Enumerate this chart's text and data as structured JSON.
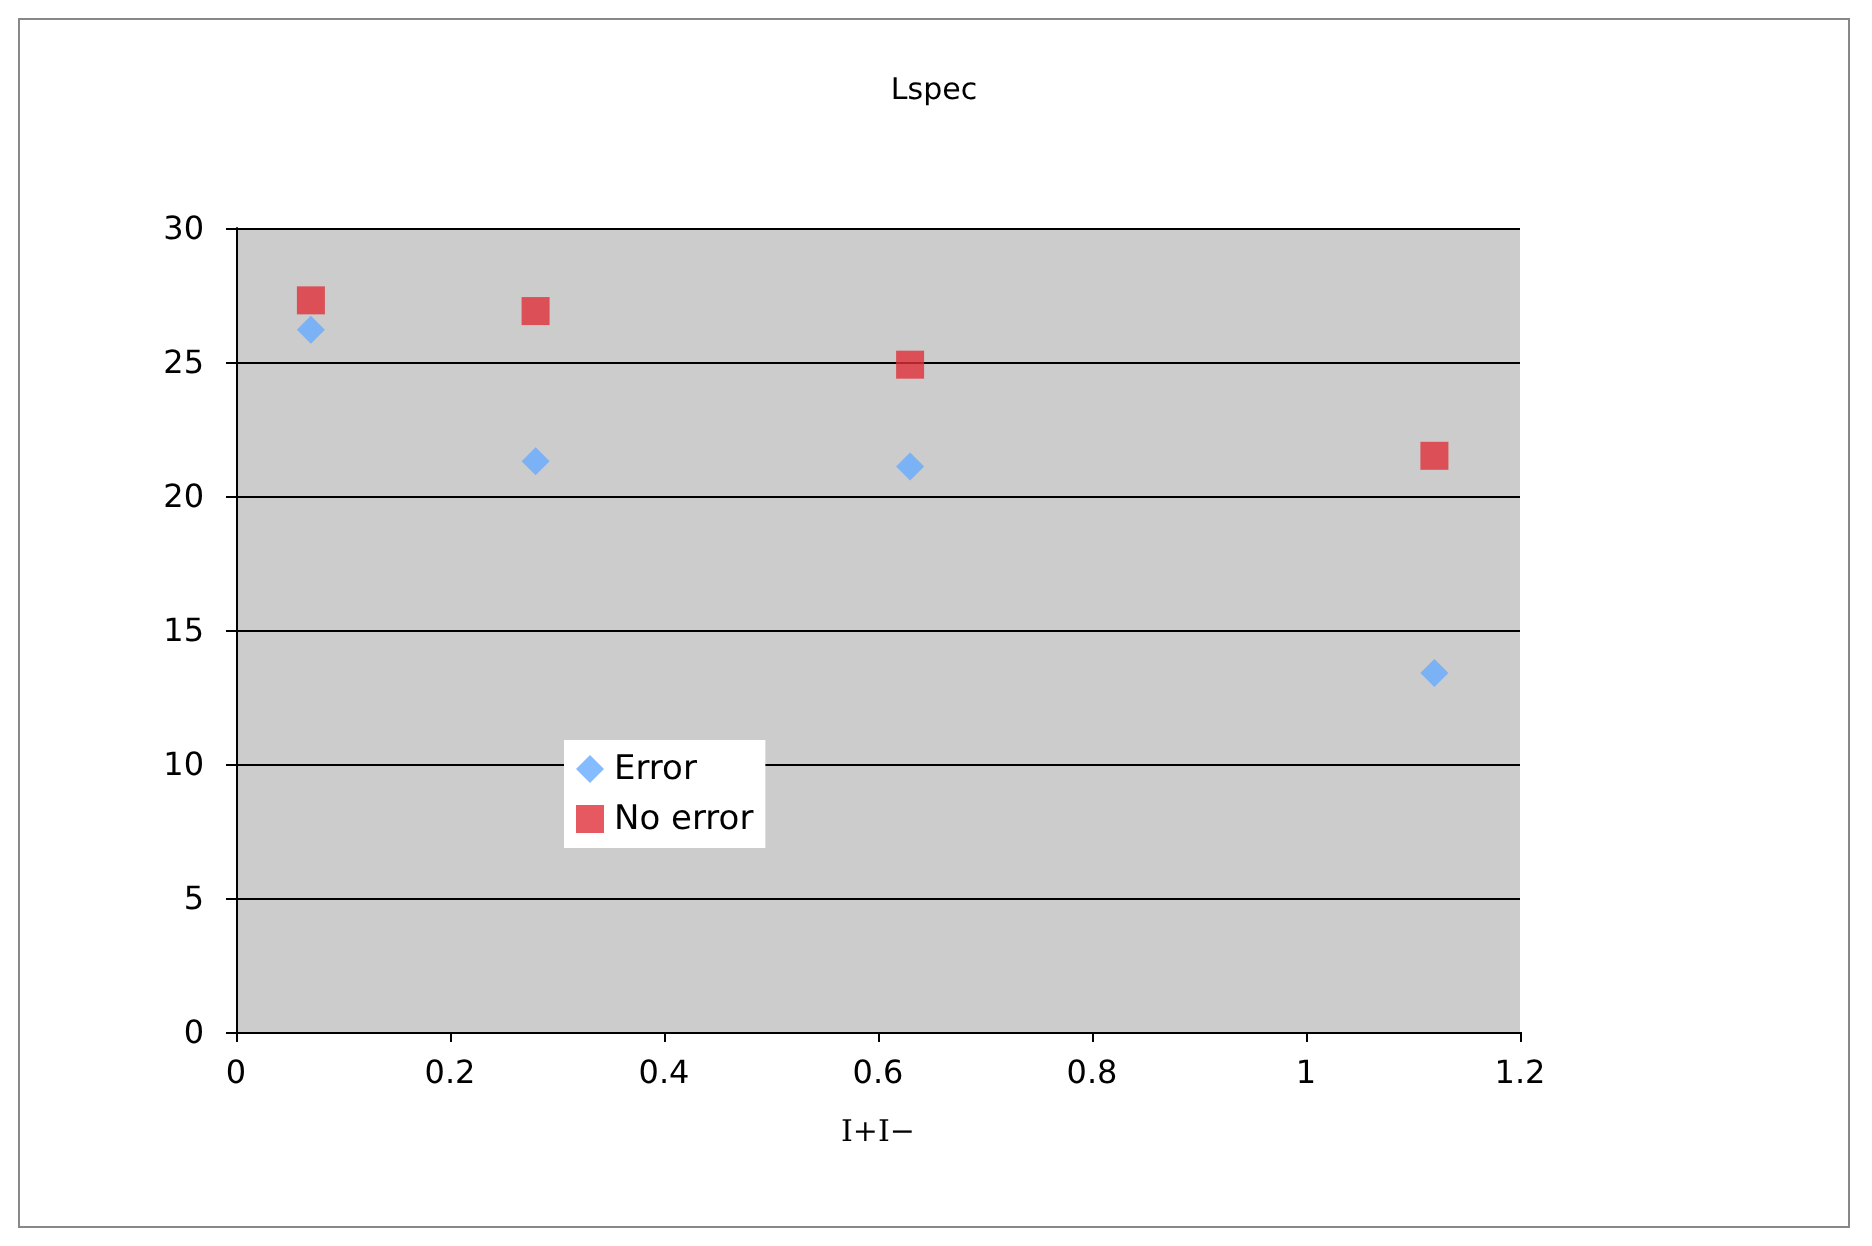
{
  "chart_data": {
    "type": "scatter",
    "title": "Lspec",
    "xlabel": "I+I−",
    "x": [
      0.07,
      0.28,
      0.63,
      1.12
    ],
    "series": [
      {
        "name": "Error",
        "color": "#66aaff",
        "marker": "diamond",
        "values": [
          26.2,
          21.3,
          21.1,
          13.4
        ]
      },
      {
        "name": "No error",
        "color": "#e0303a",
        "marker": "square",
        "values": [
          27.3,
          26.9,
          24.9,
          21.5
        ]
      }
    ],
    "xlim": [
      0,
      1.2
    ],
    "xticks": [
      0,
      0.2,
      0.4,
      0.6,
      0.8,
      1,
      1.2
    ],
    "ylim": [
      0,
      30
    ],
    "yticks": [
      0,
      5,
      10,
      15,
      20,
      25,
      30
    ],
    "grid": "y",
    "legend": "left"
  }
}
